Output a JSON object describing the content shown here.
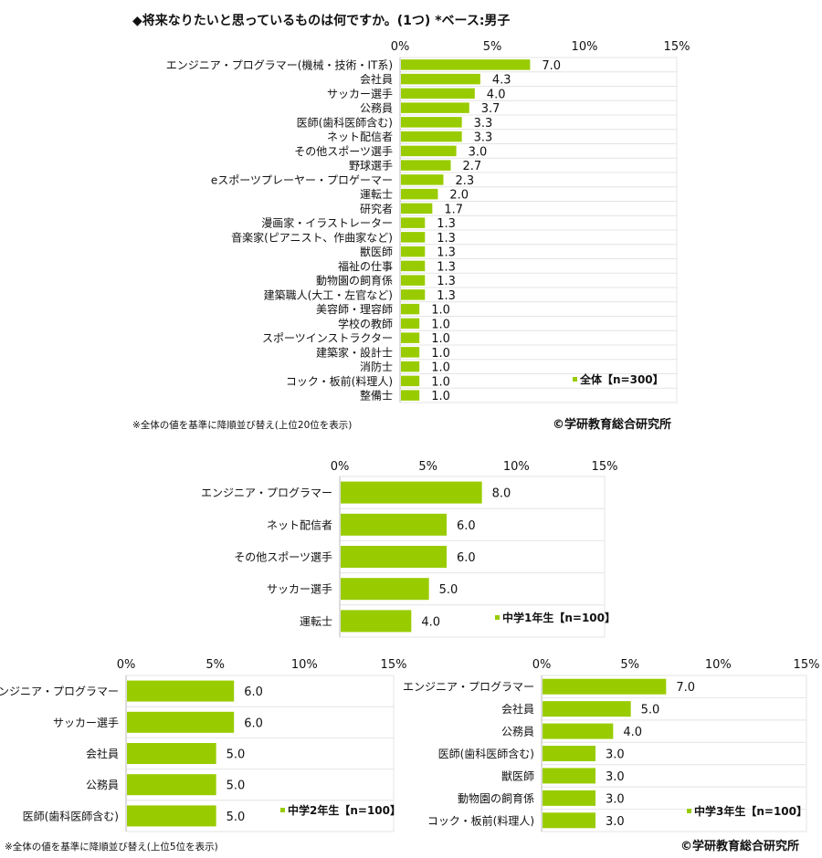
{
  "chart_data": [
    {
      "type": "bar",
      "orientation": "horizontal",
      "title": "◆将来なりたいと思っているものは何ですか。(1つ)  *ベース:男子",
      "xlim": [
        0,
        15
      ],
      "ticks": [
        "0%",
        "5%",
        "10%",
        "15%"
      ],
      "grid": true,
      "legend": "全体【n=300】",
      "legend_placement": "bottom-right",
      "categories": [
        "エンジニア・プログラマー(機械・技術・IT系)",
        "会社員",
        "サッカー選手",
        "公務員",
        "医師(歯科医師含む)",
        "ネット配信者",
        "その他スポーツ選手",
        "野球選手",
        "eスポーツプレーヤー・プロゲーマー",
        "運転士",
        "研究者",
        "漫画家・イラストレーター",
        "音楽家(ピアニスト、作曲家など)",
        "獣医師",
        "福祉の仕事",
        "動物園の飼育係",
        "建築職人(大工・左官など)",
        "美容師・理容師",
        "学校の教師",
        "スポーツインストラクター",
        "建築家・設計士",
        "消防士",
        "コック・板前(料理人)",
        "整備士"
      ],
      "values": [
        7.0,
        4.3,
        4.0,
        3.7,
        3.3,
        3.3,
        3.0,
        2.7,
        2.3,
        2.0,
        1.7,
        1.3,
        1.3,
        1.3,
        1.3,
        1.3,
        1.3,
        1.0,
        1.0,
        1.0,
        1.0,
        1.0,
        1.0,
        1.0
      ],
      "value_labels": [
        "7.0",
        "4.3",
        "4.0",
        "3.7",
        "3.3",
        "3.3",
        "3.0",
        "2.7",
        "2.3",
        "2.0",
        "1.7",
        "1.3",
        "1.3",
        "1.3",
        "1.3",
        "1.3",
        "1.3",
        "1.0",
        "1.0",
        "1.0",
        "1.0",
        "1.0",
        "1.0",
        "1.0"
      ],
      "footnote": "※全体の値を基準に降順並び替え(上位20位を表示)",
      "copyright": "©学研教育総合研究所"
    },
    {
      "type": "bar",
      "orientation": "horizontal",
      "xlim": [
        0,
        15
      ],
      "ticks": [
        "0%",
        "5%",
        "10%",
        "15%"
      ],
      "grid": true,
      "legend": "中学1年生【n=100】",
      "legend_placement": "bottom-right",
      "categories": [
        "エンジニア・プログラマー",
        "ネット配信者",
        "その他スポーツ選手",
        "サッカー選手",
        "運転士"
      ],
      "values": [
        8.0,
        6.0,
        6.0,
        5.0,
        4.0
      ],
      "value_labels": [
        "8.0",
        "6.0",
        "6.0",
        "5.0",
        "4.0"
      ]
    },
    {
      "type": "bar",
      "orientation": "horizontal",
      "xlim": [
        0,
        15
      ],
      "ticks": [
        "0%",
        "5%",
        "10%",
        "15%"
      ],
      "grid": true,
      "legend": "中学2年生【n=100】",
      "legend_placement": "bottom-right",
      "categories": [
        "エンジニア・プログラマー",
        "サッカー選手",
        "会社員",
        "公務員",
        "医師(歯科医師含む)"
      ],
      "values": [
        6.0,
        6.0,
        5.0,
        5.0,
        5.0
      ],
      "value_labels": [
        "6.0",
        "6.0",
        "5.0",
        "5.0",
        "5.0"
      ],
      "footnote": "※全体の値を基準に降順並び替え(上位5位を表示)"
    },
    {
      "type": "bar",
      "orientation": "horizontal",
      "xlim": [
        0,
        15
      ],
      "ticks": [
        "0%",
        "5%",
        "10%",
        "15%"
      ],
      "grid": true,
      "legend": "中学3年生【n=100】",
      "legend_placement": "bottom-right",
      "categories": [
        "エンジニア・プログラマー",
        "会社員",
        "公務員",
        "医師(歯科医師含む)",
        "獣医師",
        "動物園の飼育係",
        "コック・板前(料理人)"
      ],
      "values": [
        7.0,
        5.0,
        4.0,
        3.0,
        3.0,
        3.0,
        3.0
      ],
      "value_labels": [
        "7.0",
        "5.0",
        "4.0",
        "3.0",
        "3.0",
        "3.0",
        "3.0"
      ],
      "copyright": "©学研教育総合研究所"
    }
  ],
  "colors": {
    "bar": "#99cc00",
    "grid": "#e4e4e4",
    "axis": "#bbbbbb"
  }
}
